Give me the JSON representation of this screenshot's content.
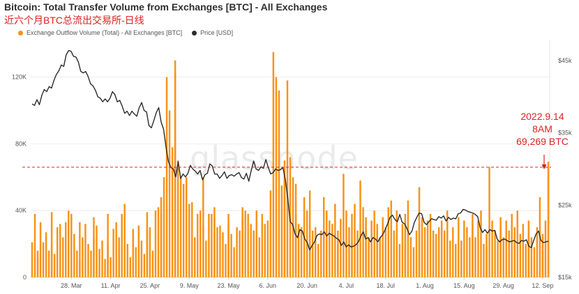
{
  "header": {
    "title": "Bitcoin: Total Transfer Volume from Exchanges [BTC] - All Exchanges",
    "subtitle": "近六个月BTC总流出交易所-日线"
  },
  "legend": {
    "series1": "Exchange Outflow Volume (Total) - All Exchanges [BTC]",
    "series2": "Price [USD]"
  },
  "annotation": {
    "line1": "2022.9.14",
    "line2": "8AM",
    "line3": "69,269 BTC"
  },
  "watermark": "glassnode",
  "colors": {
    "bars": "#f7931a",
    "price": "#2b2b2b",
    "annotation": "#e02020"
  },
  "chart_data": {
    "type": "bar",
    "x_start": "2022-03-14",
    "x_end": "2022-09-14",
    "x_ticks": [
      "28. Mar",
      "11. Apr",
      "25. Apr",
      "9. May",
      "23. May",
      "6. Jun",
      "20. Jun",
      "4. Jul",
      "18. Jul",
      "1. Aug",
      "15. Aug",
      "29. Aug",
      "12. Sep"
    ],
    "y_left_ticks": [
      "0",
      "40K",
      "80K",
      "120K"
    ],
    "y_left_lim": [
      0,
      142000
    ],
    "y_right_ticks": [
      "$15k",
      "$25k",
      "$35k",
      "$45k"
    ],
    "y_right_lim": [
      15000,
      47800
    ],
    "reference_line": {
      "value": 66000,
      "style": "dashed"
    },
    "series": [
      {
        "name": "Exchange Outflow Volume (Total) - All Exchanges [BTC]",
        "axis": "left",
        "values": [
          21000,
          38000,
          16000,
          12000,
          33000,
          21000,
          27000,
          16000,
          39000,
          21000,
          14000,
          30000,
          32000,
          24000,
          18000,
          33000,
          40000,
          38000,
          26000,
          16000,
          33000,
          10000,
          24000,
          32000,
          20000,
          16000,
          36000,
          23000,
          31000,
          17000,
          22000,
          11000,
          38000,
          20000,
          12000,
          29000,
          33000,
          24000,
          18000,
          38000,
          44000,
          20000,
          12000,
          27000,
          29000,
          18000,
          31000,
          22000,
          14000,
          28000,
          39000,
          30000,
          16000,
          40000,
          42000,
          38000,
          48000,
          60000,
          120000,
          100000,
          78000,
          122000,
          130000,
          70000,
          60000,
          56000,
          60000,
          44000,
          38000,
          45000,
          24000,
          38000,
          40000,
          60000,
          30000,
          22000,
          38000,
          38000,
          36000,
          42000,
          30000,
          31000,
          27000,
          20000,
          38000,
          32000,
          26000,
          18000,
          30000,
          28000,
          42000,
          35000,
          40000,
          38000,
          32000,
          28000,
          20000,
          40000,
          24000,
          38000,
          32000,
          34000,
          28000,
          52000,
          135000,
          120000,
          112000,
          55000,
          70000,
          60000,
          118000,
          72000,
          60000,
          56000,
          38000,
          32000,
          30000,
          48000,
          40000,
          32000,
          52000,
          28000,
          30000,
          20000,
          28000,
          36000,
          48000,
          40000,
          34000,
          32000,
          44000,
          28000,
          20000,
          35000,
          62000,
          40000,
          30000,
          22000,
          38000,
          44000,
          28000,
          58000,
          42000,
          36000,
          30000,
          24000,
          34000,
          40000,
          32000,
          28000,
          24000,
          36000,
          30000,
          42000,
          46000,
          22000,
          28000,
          40000,
          20000,
          32000,
          28000,
          38000,
          46000,
          24000,
          18000,
          28000,
          32000,
          54000,
          36000,
          30000,
          34000,
          38000,
          28000,
          22000,
          26000,
          30000,
          34000,
          28000,
          40000,
          26000,
          22000,
          30000,
          20000,
          36000,
          22000,
          18000,
          34000,
          30000,
          24000,
          38000,
          32000,
          24000,
          34000,
          40000,
          20000,
          26000,
          18000,
          66000,
          34000,
          28000,
          22000,
          36000,
          30000,
          24000,
          34000,
          28000,
          38000,
          22000,
          30000,
          40000,
          26000,
          32000,
          20000,
          28000,
          34000,
          24000,
          18000,
          30000,
          48000,
          26000,
          16000,
          34000,
          69269
        ]
      },
      {
        "name": "Price [USD]",
        "axis": "right",
        "values": [
          39000,
          38800,
          39600,
          38900,
          40200,
          41000,
          40700,
          41400,
          41200,
          42300,
          43100,
          43600,
          44400,
          44200,
          45800,
          46400,
          46300,
          45600,
          45500,
          44800,
          43500,
          43300,
          43500,
          42800,
          41800,
          41500,
          40900,
          40000,
          39800,
          39300,
          39700,
          39300,
          39800,
          40700,
          40300,
          39300,
          39500,
          38700,
          37700,
          38000,
          37400,
          38000,
          37600,
          37300,
          38500,
          39200,
          38100,
          37900,
          36000,
          35700,
          36700,
          37800,
          38500,
          36500,
          35500,
          33000,
          31000,
          30200,
          30000,
          28900,
          31000,
          28700,
          29300,
          28900,
          29400,
          30500,
          30000,
          29700,
          29300,
          29800,
          28500,
          29200,
          29400,
          30700,
          30400,
          29300,
          29300,
          28700,
          29100,
          29600,
          28700,
          29100,
          29200,
          29000,
          29300,
          29500,
          28800,
          28600,
          29400,
          28300,
          29800,
          31100,
          30000,
          29800,
          30300,
          30100,
          31300,
          30200,
          29300,
          29500,
          30000,
          29800,
          29900,
          30200,
          28500,
          26000,
          22700,
          22300,
          21000,
          20500,
          21600,
          21400,
          20300,
          19800,
          18800,
          19400,
          19900,
          20800,
          21000,
          20900,
          21300,
          20700,
          21100,
          20900,
          20700,
          20400,
          20200,
          19400,
          19900,
          19200,
          19500,
          19200,
          19300,
          19500,
          19900,
          20700,
          21300,
          20300,
          20500,
          19900,
          20500,
          20300,
          19900,
          20500,
          20900,
          21600,
          22400,
          23300,
          23600,
          23000,
          22700,
          23700,
          22600,
          22400,
          21700,
          20900,
          21400,
          22600,
          23300,
          23900,
          23800,
          22600,
          22300,
          22700,
          23100,
          23000,
          22900,
          23400,
          23200,
          23500,
          22800,
          23300,
          23000,
          23200,
          23100,
          23800,
          23900,
          24400,
          24300,
          24100,
          24000,
          23900,
          23700,
          23400,
          21900,
          21200,
          21600,
          21100,
          21600,
          21400,
          21500,
          20300,
          19900,
          20200,
          20300,
          20100,
          19900,
          20000,
          20100,
          19800,
          19700,
          20100,
          20000,
          20200,
          19300,
          19100,
          20100,
          21000,
          21400,
          20100,
          19800,
          19900,
          20000
        ]
      }
    ]
  }
}
